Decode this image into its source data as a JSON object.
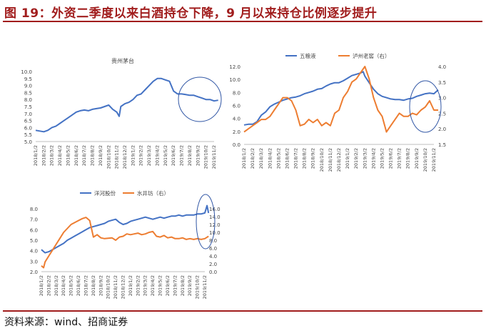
{
  "figure": {
    "title": "图 19：外资二季度以来白酒持仓下降，9 月以来持仓比例逐步提升",
    "source": "资料来源：wind、招商证券"
  },
  "chart_data": [
    {
      "type": "line",
      "title": "贵州茅台",
      "y_ticks": [
        "10.0",
        "9.5",
        "9.0",
        "8.5",
        "8.0",
        "7.5",
        "7.0",
        "6.5",
        "6.0",
        "5.5",
        "5.0"
      ],
      "ylim": [
        5.0,
        10.0
      ],
      "x_ticks": [
        "2018/1/2",
        "2018/2/2",
        "2018/3/2",
        "2018/4/2",
        "2018/5/2",
        "2018/6/2",
        "2018/7/2",
        "2018/8/2",
        "2018/9/2",
        "2018/10/2",
        "2018/11/2",
        "2018/12/2",
        "2019/1/2",
        "2019/2/2",
        "2019/3/2",
        "2019/4/2",
        "2019/5/2",
        "2019/6/2",
        "2019/7/2",
        "2019/8/2",
        "2019/9/2",
        "2019/10/2",
        "2019/11/2"
      ],
      "series": [
        {
          "name": "",
          "color": "#4472c4",
          "axis": "left",
          "x": [
            0,
            0.5,
            1,
            1.5,
            2,
            2.5,
            3,
            3.5,
            4,
            4.5,
            5,
            5.5,
            6,
            6.5,
            7,
            7.5,
            8,
            8.5,
            9,
            9.5,
            10,
            10.3,
            10.5,
            11,
            11.5,
            12,
            12.5,
            13,
            13.5,
            14,
            14.5,
            15,
            15.5,
            16,
            16.5,
            17,
            17.5,
            18,
            18.5,
            19,
            19.5,
            20,
            20.5,
            21,
            21.5,
            22,
            22.5
          ],
          "y": [
            5.8,
            5.75,
            5.7,
            5.8,
            6.0,
            6.1,
            6.3,
            6.5,
            6.7,
            6.9,
            7.1,
            7.2,
            7.25,
            7.2,
            7.3,
            7.35,
            7.4,
            7.5,
            7.6,
            7.3,
            7.1,
            6.8,
            7.5,
            7.7,
            7.8,
            8.0,
            8.3,
            8.4,
            8.7,
            9.0,
            9.3,
            9.5,
            9.5,
            9.4,
            9.3,
            8.6,
            8.4,
            8.4,
            8.35,
            8.3,
            8.3,
            8.2,
            8.1,
            8.0,
            8.0,
            7.9,
            7.95
          ]
        }
      ]
    },
    {
      "type": "line",
      "title": "",
      "y_ticks": [
        "12.0",
        "10.0",
        "8.0",
        "6.0",
        "4.0",
        "2.0",
        "0.0"
      ],
      "ylim": [
        0,
        12
      ],
      "y2_ticks": [
        "4.0",
        "3.5",
        "3.0",
        "2.5",
        "2.0",
        "1.5"
      ],
      "y2lim": [
        1.5,
        4.0
      ],
      "x_ticks": [
        "2018/1/2",
        "2018/2/2",
        "2018/3/2",
        "2018/4/2",
        "2018/5/2",
        "2018/6/2",
        "2018/7/2",
        "2018/8/2",
        "2018/9/2",
        "2018/10/2",
        "2018/11/2",
        "2018/12/2",
        "2019/1/2",
        "2019/2/2",
        "2019/3/2",
        "2019/4/2",
        "2019/5/2",
        "2019/6/2",
        "2019/7/2",
        "2019/8/2",
        "2019/9/2",
        "2019/10/2",
        "2019/11/2"
      ],
      "series": [
        {
          "name": "五粮液",
          "color": "#4472c4",
          "axis": "left",
          "x": [
            0,
            0.5,
            1,
            1.5,
            2,
            2.5,
            3,
            3.5,
            4,
            4.5,
            5,
            5.5,
            6,
            6.5,
            7,
            7.5,
            8,
            8.5,
            9,
            9.5,
            10,
            10.5,
            11,
            11.5,
            12,
            12.5,
            13,
            13.5,
            13.8,
            14,
            14.5,
            15,
            15.5,
            16,
            16.5,
            17,
            17.5,
            18,
            18.5,
            19,
            19.5,
            20,
            20.5,
            21,
            21.5,
            22,
            22.5
          ],
          "y": [
            3.0,
            3.1,
            3.1,
            3.5,
            4.5,
            5.0,
            5.8,
            6.2,
            6.5,
            6.8,
            7.0,
            7.2,
            7.3,
            7.5,
            7.8,
            8.0,
            8.2,
            8.5,
            8.6,
            9.0,
            9.3,
            9.5,
            9.5,
            9.8,
            10.2,
            10.6,
            10.8,
            11.0,
            11.2,
            10.5,
            9.5,
            8.5,
            7.8,
            7.4,
            7.2,
            7.0,
            6.9,
            6.9,
            6.8,
            7.0,
            7.1,
            7.4,
            7.6,
            7.8,
            7.9,
            7.8,
            8.4
          ]
        },
        {
          "name": "泸州老窖（右）",
          "color": "#ed7d31",
          "axis": "right",
          "x": [
            0,
            0.5,
            1,
            1.5,
            2,
            2.5,
            3,
            3.5,
            4,
            4.5,
            5,
            5.5,
            6,
            6.5,
            7,
            7.5,
            8,
            8.5,
            9,
            9.5,
            10,
            10.5,
            11,
            11.5,
            12,
            12.5,
            13,
            13.5,
            14,
            14.5,
            15,
            15.5,
            16,
            16.3,
            16.5,
            17,
            17.5,
            18,
            18.5,
            19,
            19.5,
            20,
            20.5,
            21,
            21.5,
            22,
            22.5
          ],
          "y": [
            1.9,
            2.0,
            2.1,
            2.2,
            2.3,
            2.3,
            2.4,
            2.6,
            2.8,
            3.0,
            3.0,
            2.9,
            2.6,
            2.1,
            2.15,
            2.3,
            2.2,
            2.3,
            2.1,
            2.2,
            2.1,
            2.5,
            2.6,
            3.0,
            3.2,
            3.5,
            3.6,
            3.8,
            4.0,
            3.6,
            3.0,
            2.6,
            2.4,
            2.1,
            1.9,
            2.1,
            2.3,
            2.5,
            2.4,
            2.4,
            2.5,
            2.45,
            2.6,
            2.7,
            2.9,
            2.6,
            2.6
          ]
        }
      ]
    },
    {
      "type": "line",
      "title": "",
      "y_ticks": [
        "8.0",
        "7.0",
        "6.0",
        "5.0",
        "4.0",
        "3.0",
        "2.0"
      ],
      "ylim": [
        2.0,
        8.0
      ],
      "y2_ticks": [
        "16.0",
        "14.0",
        "12.0",
        "10.0",
        "8.0",
        "6.0",
        "4.0",
        "2.0",
        "0.0"
      ],
      "y2lim": [
        0,
        16
      ],
      "x_ticks": [
        "2018/1/2",
        "2018/2/2",
        "2018/3/2",
        "2018/4/2",
        "2018/5/2",
        "2018/6/2",
        "2018/7/2",
        "2018/8/2",
        "2018/9/2",
        "2018/10/2",
        "2018/11/2",
        "2018/12/2",
        "2019/1/2",
        "2019/2/2",
        "2019/3/2",
        "2019/4/2",
        "2019/5/2",
        "2019/6/2",
        "2019/7/2",
        "2019/8/2",
        "2019/9/2",
        "2019/10/2",
        "2019/11/2"
      ],
      "series": [
        {
          "name": "洋河股份",
          "color": "#4472c4",
          "axis": "left",
          "x": [
            0,
            0.5,
            1,
            1.5,
            2,
            2.5,
            3,
            3.5,
            4,
            4.5,
            5,
            5.5,
            6,
            6.5,
            7,
            7.5,
            8,
            8.5,
            9,
            9.5,
            10,
            10.5,
            11,
            11.5,
            12,
            12.5,
            13,
            13.5,
            14,
            14.5,
            15,
            15.5,
            16,
            16.5,
            17,
            17.5,
            18,
            18.5,
            19,
            19.5,
            20,
            20.5,
            21,
            21.5,
            22,
            22.3,
            22.5
          ],
          "y": [
            4.1,
            3.8,
            3.9,
            4.1,
            4.3,
            4.5,
            4.7,
            5.0,
            5.2,
            5.4,
            5.6,
            5.8,
            6.0,
            6.2,
            6.3,
            6.4,
            6.5,
            6.6,
            6.8,
            6.9,
            7.0,
            6.7,
            6.5,
            6.6,
            6.8,
            6.9,
            7.0,
            7.1,
            7.2,
            7.1,
            7.0,
            7.1,
            7.2,
            7.1,
            7.2,
            7.3,
            7.3,
            7.4,
            7.3,
            7.4,
            7.4,
            7.4,
            7.5,
            7.5,
            7.6,
            8.3,
            7.6
          ]
        },
        {
          "name": "水井坊（右）",
          "color": "#ed7d31",
          "axis": "right",
          "x": [
            0,
            0.3,
            0.5,
            1,
            1.5,
            2,
            2.5,
            3,
            3.5,
            4,
            4.5,
            5,
            5.5,
            6,
            6.5,
            7,
            7.5,
            8,
            8.5,
            9,
            9.5,
            10,
            10.5,
            11,
            11.5,
            12,
            12.5,
            13,
            13.5,
            14,
            14.5,
            15,
            15.5,
            16,
            16.5,
            17,
            17.5,
            18,
            18.5,
            19,
            19.5,
            20,
            20.5,
            21,
            21.5,
            22,
            22.5
          ],
          "y": [
            1.5,
            1.0,
            2.5,
            4.0,
            5.5,
            7.0,
            8.5,
            10.0,
            11.0,
            12.0,
            12.5,
            13.0,
            13.5,
            13.8,
            13.0,
            8.8,
            9.4,
            8.6,
            8.4,
            8.5,
            8.6,
            8.0,
            8.8,
            9.0,
            9.6,
            9.4,
            9.6,
            9.8,
            9.4,
            9.6,
            10.0,
            10.2,
            9.0,
            8.8,
            9.2,
            8.6,
            8.8,
            8.4,
            8.4,
            8.6,
            8.2,
            8.4,
            8.2,
            8.4,
            8.2,
            8.4,
            9.0
          ]
        }
      ]
    }
  ]
}
